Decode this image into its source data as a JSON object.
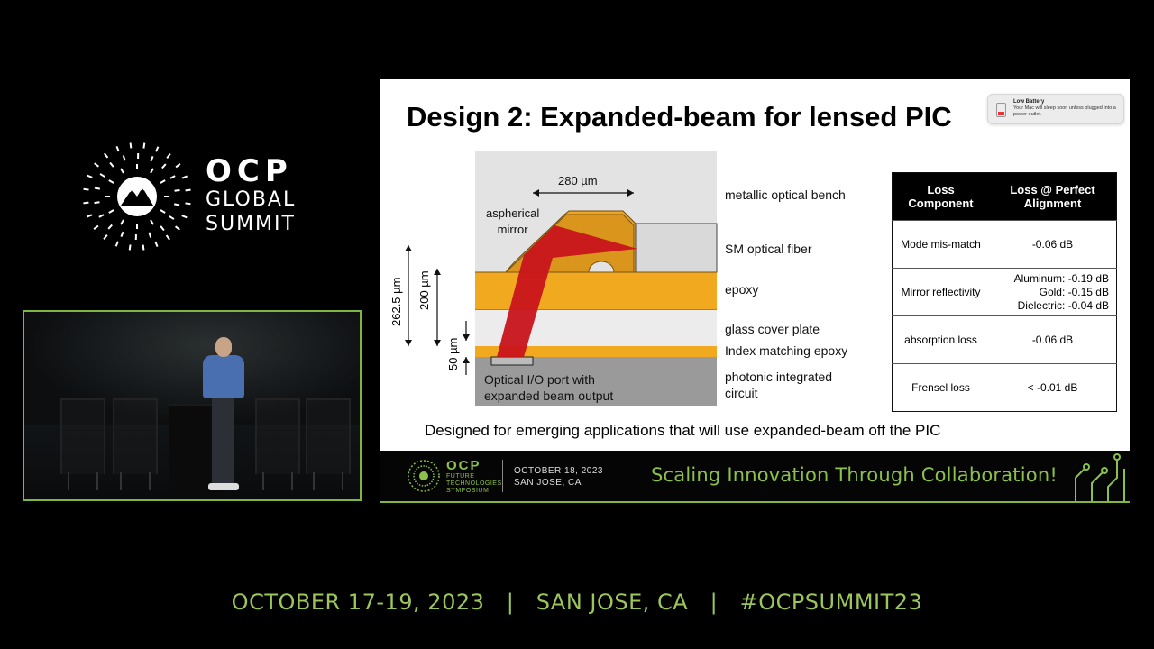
{
  "brand": {
    "line1": "OCP",
    "line2": "GLOBAL",
    "line3": "SUMMIT"
  },
  "slide": {
    "title": "Design 2: Expanded-beam for lensed PIC",
    "notification": {
      "title": "Low Battery",
      "body": "Your Mac will sleep soon unless plugged into a power outlet."
    },
    "diagram": {
      "width_label": "280 µm",
      "mirror_label_line1": "aspherical",
      "mirror_label_line2": "mirror",
      "height_262": "262.5 µm",
      "height_200": "200 µm",
      "height_50": "50 µm",
      "port_label_line1": "Optical I/O port with",
      "port_label_line2": "expanded beam output",
      "layers": {
        "bench": "metallic optical bench",
        "fiber": "SM optical fiber",
        "epoxy": "epoxy",
        "glass": "glass cover plate",
        "index": "Index matching epoxy",
        "pic_line1": "photonic integrated",
        "pic_line2": "circuit"
      }
    },
    "table": {
      "headers": [
        "Loss Component",
        "Loss @ Perfect Alignment"
      ],
      "rows": [
        {
          "component": "Mode mis-match",
          "loss": [
            "-0.06 dB"
          ]
        },
        {
          "component": "Mirror reflectivity",
          "loss": [
            "Aluminum: -0.19 dB",
            "Gold: -0.15 dB",
            "Dielectric: -0.04 dB"
          ]
        },
        {
          "component": "absorption loss",
          "loss": [
            "-0.06 dB"
          ]
        },
        {
          "component": "Frensel loss",
          "loss": [
            "< -0.01 dB"
          ]
        }
      ]
    },
    "footnote": "Designed for emerging applications that will use expanded-beam off the PIC"
  },
  "footer_bar": {
    "ocp": "OCP",
    "sub_line1": "FUTURE",
    "sub_line2": "TECHNOLOGIES",
    "sub_line3": "SYMPOSIUM",
    "date": "OCTOBER 18, 2023",
    "location": "SAN JOSE, CA",
    "tagline": "Scaling Innovation Through Collaboration!"
  },
  "bottom": {
    "text": "OCTOBER 17-19, 2023   |   SAN JOSE, CA   |   #OCPSUMMIT23"
  },
  "colors": {
    "accent_green": "#8cc04a",
    "epoxy_orange": "#f1a91f",
    "beam_red": "#c8141b"
  }
}
